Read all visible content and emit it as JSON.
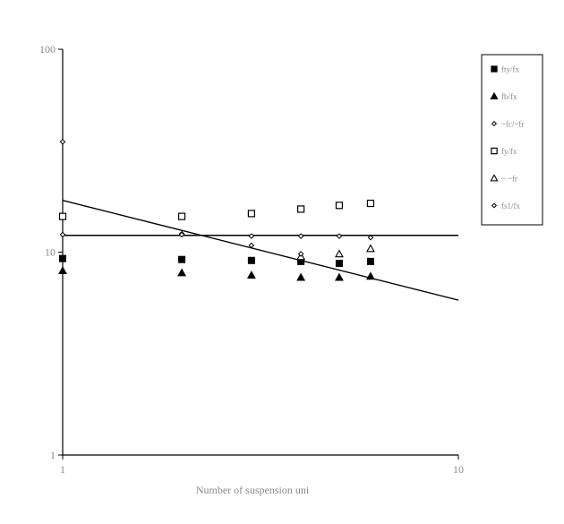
{
  "chart_data": {
    "type": "scatter",
    "title": "",
    "xlabel": "Number of suspension uni",
    "ylabel": "",
    "xscale": "log",
    "yscale": "log",
    "xlim": [
      1,
      10
    ],
    "ylim": [
      1,
      100
    ],
    "x_tick_labels": [
      "1",
      "10"
    ],
    "y_tick_labels": [
      "1",
      "10",
      "100"
    ],
    "grid": false,
    "legend_position": "right",
    "series": [
      {
        "name": "fty/fx",
        "marker": "filled-square",
        "points": [
          [
            1,
            9.3
          ],
          [
            2,
            9.2
          ],
          [
            3,
            9.1
          ],
          [
            4,
            9.0
          ],
          [
            5,
            8.8
          ],
          [
            6,
            9.0
          ]
        ]
      },
      {
        "name": "fb/fx",
        "marker": "filled-triangle",
        "points": [
          [
            1,
            8.1
          ],
          [
            2,
            7.9
          ],
          [
            3,
            7.7
          ],
          [
            4,
            7.5
          ],
          [
            5,
            7.5
          ],
          [
            6,
            7.6
          ]
        ]
      },
      {
        "name": "~fc/~fr",
        "marker": "small-diamond",
        "points": [
          [
            2,
            12.3
          ],
          [
            3,
            12.0
          ],
          [
            4,
            12.0
          ],
          [
            5,
            12.0
          ],
          [
            6,
            11.8
          ]
        ]
      },
      {
        "name": "fy/fx",
        "marker": "open-square",
        "points": [
          [
            1,
            15.0
          ],
          [
            2,
            15.0
          ],
          [
            3,
            15.5
          ],
          [
            4,
            16.3
          ],
          [
            5,
            17.0
          ],
          [
            6,
            17.4
          ]
        ]
      },
      {
        "name": "~ ~fr",
        "marker": "open-triangle",
        "points": [
          [
            4,
            9.5
          ],
          [
            5,
            9.8
          ],
          [
            6,
            10.4
          ]
        ]
      },
      {
        "name": "fs1/fx",
        "marker": "small-diamond",
        "points": [
          [
            1,
            35.0
          ],
          [
            1,
            12.2
          ],
          [
            2,
            12.2
          ],
          [
            3,
            10.8
          ],
          [
            4,
            9.8
          ]
        ]
      }
    ],
    "lines": [
      {
        "kind": "horizontal",
        "y": 12.1
      },
      {
        "kind": "trend",
        "from": [
          1,
          18.0
        ],
        "to": [
          10,
          5.8
        ]
      }
    ]
  }
}
